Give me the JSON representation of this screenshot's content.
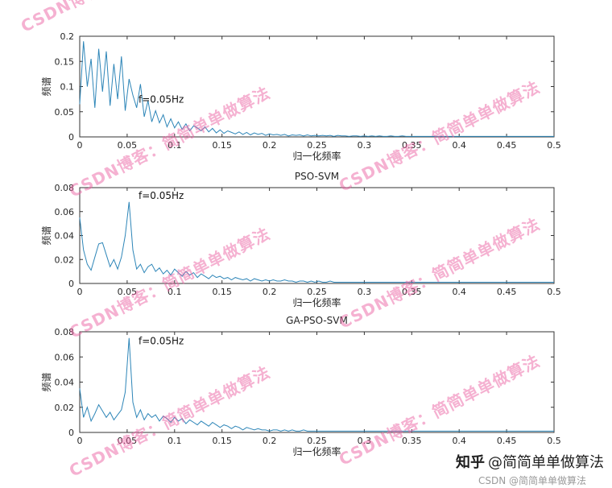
{
  "figure": {
    "background": "#ffffff",
    "line_color": "#2e86b8",
    "axes_color": "#333333"
  },
  "watermark": {
    "text": "CSDN博客：简简单单做算法",
    "color": "rgba(236,100,164,0.5)"
  },
  "footer": {
    "zhihu_brand": "知乎",
    "zhihu_handle": "@简简单单做算法",
    "csdn_credit": "CSDN @简简单单做算法"
  },
  "chart_data": [
    {
      "type": "line",
      "title": "",
      "xlabel": "归一化频率",
      "ylabel": "频谱",
      "xlim": [
        0,
        0.5
      ],
      "ylim": [
        0,
        0.2
      ],
      "xticks": [
        0,
        0.05,
        0.1,
        0.15,
        0.2,
        0.25,
        0.3,
        0.35,
        0.4,
        0.45,
        0.5
      ],
      "xtick_labels": [
        "0",
        "0.05",
        "0.1",
        "0.15",
        "0.2",
        "0.25",
        "0.3",
        "0.35",
        "0.4",
        "0.45",
        "0.5"
      ],
      "yticks": [
        0,
        0.05,
        0.1,
        0.15,
        0.2
      ],
      "ytick_labels": [
        "0",
        "0.05",
        "0.1",
        "0.15",
        "0.2"
      ],
      "annotation": {
        "text": "f=0.05Hz",
        "x": 0.062,
        "y": 0.068
      },
      "x_start": 0,
      "x_step": 0.004,
      "values": [
        0.065,
        0.19,
        0.1,
        0.155,
        0.058,
        0.175,
        0.09,
        0.17,
        0.062,
        0.145,
        0.075,
        0.16,
        0.052,
        0.115,
        0.083,
        0.058,
        0.105,
        0.04,
        0.072,
        0.03,
        0.052,
        0.028,
        0.044,
        0.02,
        0.036,
        0.018,
        0.03,
        0.015,
        0.026,
        0.012,
        0.022,
        0.018,
        0.012,
        0.02,
        0.01,
        0.017,
        0.008,
        0.014,
        0.007,
        0.012,
        0.009,
        0.006,
        0.01,
        0.005,
        0.009,
        0.004,
        0.008,
        0.005,
        0.007,
        0.003,
        0.006,
        0.004,
        0.005,
        0.003,
        0.005,
        0.002,
        0.004,
        0.003,
        0.004,
        0.002,
        0.004,
        0.002,
        0.003,
        0.002,
        0.003,
        0.002,
        0.003,
        0.001,
        0.003,
        0.002,
        0.002,
        0.001,
        0.002,
        0.002,
        0.001,
        0.002,
        0.001,
        0.002,
        0.001,
        0.002,
        0.001,
        0.001,
        0.002,
        0.001,
        0.001,
        0.002,
        0.001,
        0.001,
        0.001,
        0.001,
        0.001,
        0.001,
        0.001,
        0.001,
        0.001,
        0.001,
        0.001,
        0.001,
        0.001,
        0.001,
        0.001,
        0.001,
        0.001,
        0.001,
        0.001,
        0.001,
        0.001,
        0.001,
        0.001,
        0.001,
        0.001,
        0.001,
        0.001,
        0.001,
        0.001,
        0.001,
        0.001,
        0.001,
        0.001,
        0.001,
        0.001,
        0.001,
        0.001,
        0.001,
        0.001,
        0.001
      ]
    },
    {
      "type": "line",
      "title": "PSO-SVM",
      "xlabel": "归一化频率",
      "ylabel": "频谱",
      "xlim": [
        0,
        0.5
      ],
      "ylim": [
        0,
        0.08
      ],
      "xticks": [
        0,
        0.05,
        0.1,
        0.15,
        0.2,
        0.25,
        0.3,
        0.35,
        0.4,
        0.45,
        0.5
      ],
      "xtick_labels": [
        "0",
        "0.05",
        "0.1",
        "0.15",
        "0.2",
        "0.25",
        "0.3",
        "0.35",
        "0.4",
        "0.45",
        "0.5"
      ],
      "yticks": [
        0,
        0.02,
        0.04,
        0.06,
        0.08
      ],
      "ytick_labels": [
        "0",
        "0.02",
        "0.04",
        "0.06",
        "0.08"
      ],
      "annotation": {
        "text": "f=0.05Hz",
        "x": 0.062,
        "y": 0.0705
      },
      "x_start": 0,
      "x_step": 0.004,
      "values": [
        0.055,
        0.028,
        0.016,
        0.011,
        0.022,
        0.033,
        0.034,
        0.024,
        0.014,
        0.02,
        0.012,
        0.022,
        0.04,
        0.068,
        0.028,
        0.012,
        0.016,
        0.009,
        0.014,
        0.016,
        0.01,
        0.013,
        0.008,
        0.011,
        0.007,
        0.012,
        0.009,
        0.006,
        0.01,
        0.007,
        0.009,
        0.005,
        0.008,
        0.006,
        0.004,
        0.007,
        0.005,
        0.006,
        0.004,
        0.005,
        0.003,
        0.005,
        0.004,
        0.003,
        0.004,
        0.002,
        0.004,
        0.003,
        0.002,
        0.003,
        0.002,
        0.003,
        0.002,
        0.002,
        0.003,
        0.002,
        0.002,
        0.001,
        0.002,
        0.002,
        0.001,
        0.002,
        0.001,
        0.002,
        0.001,
        0.001,
        0.002,
        0.001,
        0.001,
        0.001,
        0.001,
        0.001,
        0.001,
        0.001,
        0.001,
        0.001,
        0.001,
        0.001,
        0.001,
        0.001,
        0.001,
        0.001,
        0.001,
        0.001,
        0.001,
        0.001,
        0.001,
        0.001,
        0.001,
        0.001,
        0.001,
        0.001,
        0.001,
        0.001,
        0.001,
        0.001,
        0.001,
        0.001,
        0.001,
        0.001,
        0.001,
        0.001,
        0.001,
        0.001,
        0.001,
        0.001,
        0.001,
        0.001,
        0.001,
        0.001,
        0.001,
        0.001,
        0.001,
        0.001,
        0.001,
        0.001,
        0.001,
        0.001,
        0.001,
        0.001,
        0.001,
        0.001,
        0.001,
        0.001,
        0.001,
        0.001
      ]
    },
    {
      "type": "line",
      "title": "GA-PSO-SVM",
      "xlabel": "归一化频率",
      "ylabel": "频谱",
      "xlim": [
        0,
        0.5
      ],
      "ylim": [
        0,
        0.08
      ],
      "xticks": [
        0,
        0.05,
        0.1,
        0.15,
        0.2,
        0.25,
        0.3,
        0.35,
        0.4,
        0.45,
        0.5
      ],
      "xtick_labels": [
        "0",
        "0.05",
        "0.1",
        "0.15",
        "0.2",
        "0.25",
        "0.3",
        "0.35",
        "0.4",
        "0.45",
        "0.5"
      ],
      "yticks": [
        0,
        0.02,
        0.04,
        0.06,
        0.08
      ],
      "ytick_labels": [
        "0",
        "0.02",
        "0.04",
        "0.06",
        "0.08"
      ],
      "annotation": {
        "text": "f=0.05Hz",
        "x": 0.062,
        "y": 0.07
      },
      "x_start": 0,
      "x_step": 0.004,
      "values": [
        0.035,
        0.012,
        0.02,
        0.009,
        0.015,
        0.022,
        0.017,
        0.012,
        0.016,
        0.01,
        0.014,
        0.018,
        0.032,
        0.075,
        0.024,
        0.012,
        0.018,
        0.01,
        0.015,
        0.012,
        0.014,
        0.009,
        0.013,
        0.011,
        0.008,
        0.012,
        0.009,
        0.011,
        0.007,
        0.01,
        0.008,
        0.006,
        0.009,
        0.007,
        0.005,
        0.008,
        0.006,
        0.004,
        0.006,
        0.005,
        0.003,
        0.005,
        0.004,
        0.002,
        0.004,
        0.003,
        0.002,
        0.003,
        0.002,
        0.002,
        0.001,
        0.002,
        0.002,
        0.001,
        0.002,
        0.001,
        0.002,
        0.001,
        0.001,
        0.002,
        0.001,
        0.001,
        0.001,
        0.001,
        0.001,
        0.001,
        0.001,
        0.001,
        0.001,
        0.001,
        0.001,
        0.001,
        0.001,
        0.001,
        0.001,
        0.001,
        0.001,
        0.001,
        0.001,
        0.001,
        0.001,
        0.001,
        0.001,
        0.001,
        0.001,
        0.001,
        0.001,
        0.001,
        0.001,
        0.001,
        0.001,
        0.001,
        0.001,
        0.001,
        0.001,
        0.001,
        0.001,
        0.001,
        0.001,
        0.001,
        0.001,
        0.001,
        0.001,
        0.001,
        0.001,
        0.001,
        0.001,
        0.001,
        0.001,
        0.001,
        0.001,
        0.001,
        0.001,
        0.001,
        0.001,
        0.001,
        0.001,
        0.001,
        0.001,
        0.001,
        0.001,
        0.001,
        0.001,
        0.001,
        0.001,
        0.001
      ]
    }
  ]
}
